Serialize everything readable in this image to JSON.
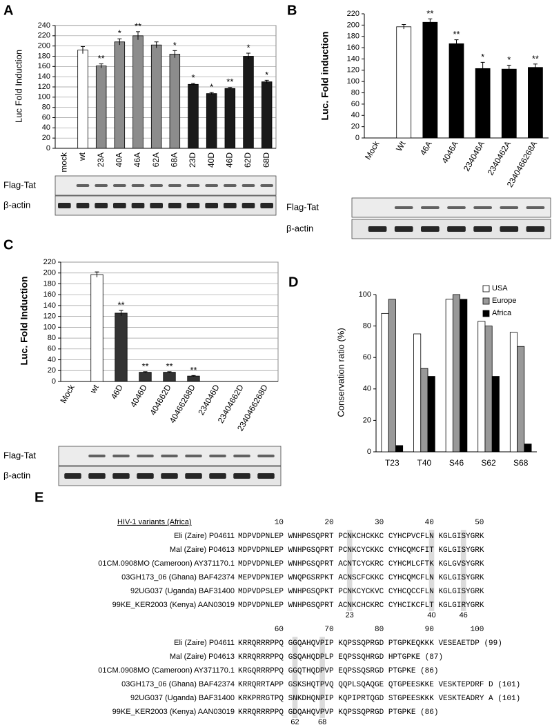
{
  "chart_data": [
    {
      "type": "bar",
      "panel_label": "A",
      "y_label": "Luc Fold Induction",
      "categories": [
        "mock",
        "wt",
        "23A",
        "40A",
        "46A",
        "62A",
        "68A",
        "23D",
        "40D",
        "46D",
        "62D",
        "68D"
      ],
      "values": [
        0,
        192,
        161,
        208,
        220,
        202,
        184,
        125,
        107,
        117,
        180,
        130
      ],
      "errors": [
        0,
        7,
        4,
        6,
        8,
        6,
        7,
        2,
        2,
        2,
        6,
        3
      ],
      "annotations": [
        null,
        null,
        "**",
        "*",
        "**",
        null,
        "*",
        "*",
        "*",
        "**",
        "*",
        "*"
      ],
      "colors": [
        "#ffffff",
        "#ffffff",
        "#8c8c8c",
        "#8c8c8c",
        "#8c8c8c",
        "#8c8c8c",
        "#8c8c8c",
        "#1a1a1a",
        "#1a1a1a",
        "#1a1a1a",
        "#1a1a1a",
        "#1a1a1a"
      ],
      "ylim": [
        0,
        240
      ],
      "yticks": [
        0,
        20,
        40,
        60,
        80,
        100,
        120,
        140,
        160,
        180,
        200,
        220,
        240
      ],
      "grid": true,
      "blot_labels": [
        "Flag-Tat",
        "β-actin"
      ]
    },
    {
      "type": "bar",
      "panel_label": "B",
      "y_label": "Luc. Fold induction",
      "categories": [
        "Mock",
        "Wt",
        "46A",
        "4046A",
        "234046A",
        "2340462A",
        "2340466268A"
      ],
      "values": [
        0,
        197,
        205,
        167,
        123,
        122,
        125
      ],
      "errors": [
        0,
        4,
        6,
        7,
        11,
        7,
        6
      ],
      "annotations": [
        null,
        null,
        "**",
        "**",
        "*",
        "*",
        "**"
      ],
      "colors": [
        "#ffffff",
        "#ffffff",
        "#000000",
        "#000000",
        "#000000",
        "#000000",
        "#000000"
      ],
      "ylim": [
        0,
        220
      ],
      "yticks": [
        0,
        20,
        40,
        60,
        80,
        100,
        120,
        140,
        160,
        180,
        200,
        220
      ],
      "grid": false,
      "blot_labels": [
        "Flag-Tat",
        "β-actin"
      ]
    },
    {
      "type": "bar",
      "panel_label": "C",
      "y_label": "Luc. Fold Induction",
      "categories": [
        "Mock",
        "wt",
        "46D",
        "4046D",
        "404662D",
        "40466268D",
        "234046D",
        "23404662D",
        "2340466268D"
      ],
      "values": [
        0,
        197,
        126,
        17,
        17,
        10,
        0,
        0,
        0
      ],
      "errors": [
        0,
        5,
        5,
        1,
        1,
        1,
        0,
        0,
        0
      ],
      "annotations": [
        null,
        null,
        "**",
        "**",
        "**",
        "**",
        null,
        null,
        null
      ],
      "colors": [
        "#ffffff",
        "#ffffff",
        "#333333",
        "#333333",
        "#333333",
        "#333333",
        "#333333",
        "#333333",
        "#333333"
      ],
      "ylim": [
        0,
        220
      ],
      "yticks": [
        0,
        20,
        40,
        60,
        80,
        100,
        120,
        140,
        160,
        180,
        200,
        220
      ],
      "grid": true,
      "blot_labels": [
        "Flag-Tat",
        "β-actin"
      ]
    },
    {
      "type": "bar",
      "panel_label": "D",
      "y_label": "Conservation ratio (%)",
      "categories": [
        "T23",
        "T40",
        "S46",
        "S62",
        "S68"
      ],
      "series": [
        {
          "name": "USA",
          "color": "#ffffff",
          "values": [
            88,
            75,
            97,
            83,
            76
          ]
        },
        {
          "name": "Europe",
          "color": "#999999",
          "values": [
            97,
            53,
            100,
            80,
            67
          ]
        },
        {
          "name": "Africa",
          "color": "#000000",
          "values": [
            4,
            48,
            97,
            48,
            5
          ]
        }
      ],
      "ylim": [
        0,
        100
      ],
      "yticks": [
        0,
        20,
        40,
        60,
        80,
        100
      ],
      "grid": false,
      "legend": "upper right"
    }
  ],
  "alignment": {
    "panel_label": "E",
    "header": "HIV-1 variants (Africa)",
    "blocks": [
      {
        "positions": [
          10,
          20,
          30,
          40,
          50
        ],
        "rows": [
          {
            "name": "Eli (Zaire) P04611",
            "sequence": "MDPVDPNLEP WNHPGSQPRT PCNKCHCKKC CYHCPVCFLN KGLGISYGRK"
          },
          {
            "name": "Mal (Zaire) P04613",
            "sequence": "MDPVDPNLEP WNHPGSQPRT PCNKCYCKKC CYHCQMCFIT KGLGISYGRK"
          },
          {
            "name": "01CM.0908MO (Cameroon) AY371170.1",
            "sequence": "MDPVDPNLEP WNHPGSQPRT ACNTCYCKRC CYHCMLCFTK KGLGVSYGRK"
          },
          {
            "name": "03GH173_06 (Ghana) BAF42374",
            "sequence": "MEPVDPNIEP WNQPGSRPKT ACNSCFCKKC CYHCQMCFLN KGLGISYGRK"
          },
          {
            "name": "92UG037 (Uganda) BAF31400",
            "sequence": "MDPVDPSLEP WNHPGSQPKT PCNKCYCKVC CYHCQCCFLN KGLGISYGRK"
          },
          {
            "name": "99KE_KER2003 (Kenya) AAN03019",
            "sequence": "MDPVDPNLEP WNHPGSQPRT ACNKCHCKRC CYHCIKCFLT KGLGIRYGRK"
          }
        ],
        "markers": [
          23,
          40,
          46
        ]
      },
      {
        "positions": [
          60,
          70,
          80,
          90,
          100
        ],
        "rows": [
          {
            "name": "Eli (Zaire) P04611",
            "sequence": "KRRQRRRPPQ GGQAHQVPIP KQPSSQPRGD PTGPKEQKKK VESEAETDP (99)"
          },
          {
            "name": "Mal (Zaire) P04613",
            "sequence": "KRRQRRRPPQ GSQAHQDPLP EQPSSQHRGD HPTGPKE (87)"
          },
          {
            "name": "01CM.0908MO (Cameroon) AY371170.1",
            "sequence": "KRGQRRRPPQ GGQTHQDPVP EQPSSQSRGD PTGPKE (86)"
          },
          {
            "name": "03GH173_06 (Ghana) BAF42374",
            "sequence": "KRRQRRTAPP GSKSHQTPVQ QQPLSQAQGE QTGPEESKKE VESKTEPDRF D (101)"
          },
          {
            "name": "92UG037 (Uganda) BAF31400",
            "sequence": "KRKPRRGTPQ SNKDHQNPIP KQPIPRTQGD STGPEESKKK VESKTEADRY A (101)"
          },
          {
            "name": "99KE_KER2003 (Kenya) AAN03019",
            "sequence": "KRRQRRRPPQ GDQAHQVPVP KQPSSQPRGD PTGPKE (86)"
          }
        ],
        "markers": [
          62,
          68
        ]
      }
    ]
  }
}
